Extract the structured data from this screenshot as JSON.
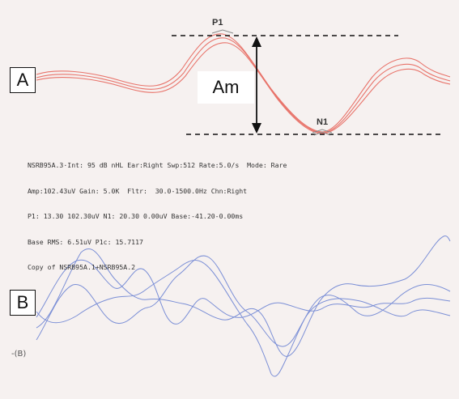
{
  "panels": {
    "a_label": "A",
    "b_label": "B"
  },
  "annotations": {
    "p1": "P1",
    "n1": "N1",
    "amplitude": "Am",
    "trace_b": "-(B)"
  },
  "info_lines": [
    "NSRB95A.3·Int: 95 dB nHL Ear:Right Swp:512 Rate:5.0/s  Mode: Rare",
    "Amp:102.43uV Gain: 5.0K  Fltr:  30.0-1500.0Hz Chn:Right",
    "P1: 13.30 102.30uV N1: 20.30 0.00uV Base:-41.20-0.00ms",
    "Base RMS: 6.51uV P1c: 15.7117",
    "Copy of NSRB95A.1+NSRB95A.2"
  ],
  "colors": {
    "trace_a": "#e8736a",
    "trace_b": "#7b8fd6",
    "guide": "#111111"
  }
}
